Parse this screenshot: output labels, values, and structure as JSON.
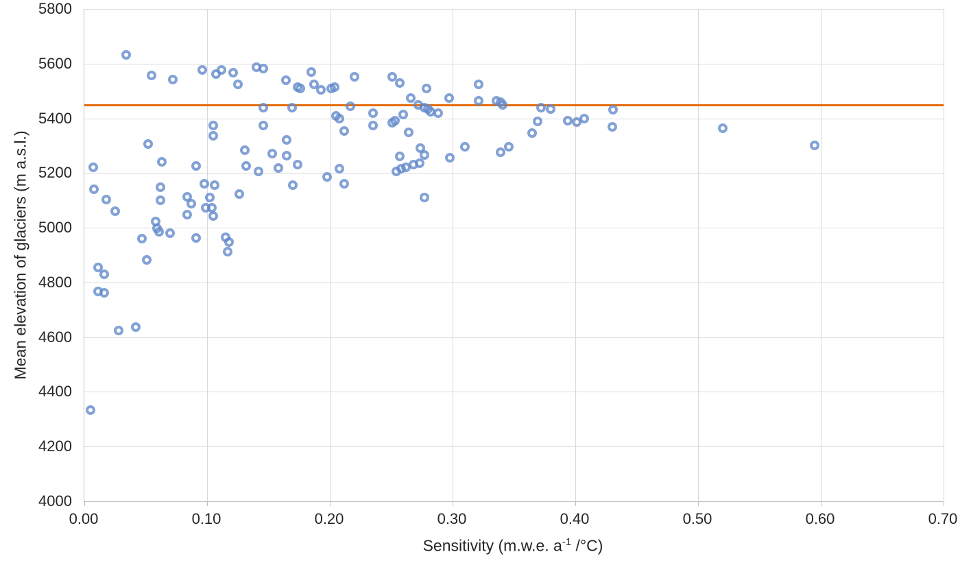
{
  "chart_data": {
    "type": "scatter",
    "title": "",
    "ylabel": "Mean elevation of glaciers (m a.s.l.)",
    "xlabel_prefix": "Sensitivity (m.w.e. a",
    "xlabel_sup": "-1",
    "xlabel_suffix": " /°C)",
    "xlim": [
      0.0,
      0.7
    ],
    "ylim": [
      4000,
      5800
    ],
    "grid": true,
    "legend_position": "none",
    "x_ticks": [
      {
        "value": 0.0,
        "label": "0.00"
      },
      {
        "value": 0.1,
        "label": "0.10"
      },
      {
        "value": 0.2,
        "label": "0.20"
      },
      {
        "value": 0.3,
        "label": "0.30"
      },
      {
        "value": 0.4,
        "label": "0.40"
      },
      {
        "value": 0.5,
        "label": "0.50"
      },
      {
        "value": 0.6,
        "label": "0.60"
      },
      {
        "value": 0.7,
        "label": "0.70"
      }
    ],
    "y_ticks": [
      {
        "value": 4000,
        "label": "4000"
      },
      {
        "value": 4200,
        "label": "4200"
      },
      {
        "value": 4400,
        "label": "4400"
      },
      {
        "value": 4600,
        "label": "4600"
      },
      {
        "value": 4800,
        "label": "4800"
      },
      {
        "value": 5000,
        "label": "5000"
      },
      {
        "value": 5200,
        "label": "5200"
      },
      {
        "value": 5400,
        "label": "5400"
      },
      {
        "value": 5600,
        "label": "5600"
      },
      {
        "value": 5800,
        "label": "5800"
      }
    ],
    "reference_line": {
      "value": 5450,
      "color": "#e56c0a"
    },
    "series": [
      {
        "name": "glacier-points",
        "marker": "open-circle",
        "color": "#6088ca",
        "points": [
          [
            0.005,
            4333
          ],
          [
            0.007,
            5220
          ],
          [
            0.008,
            5140
          ],
          [
            0.018,
            5103
          ],
          [
            0.025,
            5060
          ],
          [
            0.011,
            4854
          ],
          [
            0.016,
            4829
          ],
          [
            0.011,
            4766
          ],
          [
            0.016,
            4761
          ],
          [
            0.028,
            4624
          ],
          [
            0.042,
            4636
          ],
          [
            0.034,
            5633
          ],
          [
            0.055,
            5558
          ],
          [
            0.072,
            5543
          ],
          [
            0.052,
            5305
          ],
          [
            0.063,
            5242
          ],
          [
            0.062,
            5147
          ],
          [
            0.062,
            5100
          ],
          [
            0.058,
            5024
          ],
          [
            0.059,
            4999
          ],
          [
            0.061,
            4984
          ],
          [
            0.07,
            4979
          ],
          [
            0.047,
            4959
          ],
          [
            0.091,
            4962
          ],
          [
            0.051,
            4882
          ],
          [
            0.084,
            5112
          ],
          [
            0.087,
            5087
          ],
          [
            0.084,
            5047
          ],
          [
            0.091,
            5225
          ],
          [
            0.096,
            5578
          ],
          [
            0.107,
            5563
          ],
          [
            0.112,
            5576
          ],
          [
            0.121,
            5566
          ],
          [
            0.125,
            5525
          ],
          [
            0.14,
            5586
          ],
          [
            0.146,
            5583
          ],
          [
            0.164,
            5540
          ],
          [
            0.174,
            5513
          ],
          [
            0.146,
            5438
          ],
          [
            0.169,
            5440
          ],
          [
            0.105,
            5375
          ],
          [
            0.105,
            5335
          ],
          [
            0.146,
            5375
          ],
          [
            0.098,
            5160
          ],
          [
            0.106,
            5156
          ],
          [
            0.102,
            5110
          ],
          [
            0.099,
            5074
          ],
          [
            0.104,
            5072
          ],
          [
            0.105,
            5042
          ],
          [
            0.126,
            5124
          ],
          [
            0.131,
            5283
          ],
          [
            0.132,
            5225
          ],
          [
            0.142,
            5205
          ],
          [
            0.153,
            5272
          ],
          [
            0.158,
            5218
          ],
          [
            0.165,
            5322
          ],
          [
            0.165,
            5263
          ],
          [
            0.115,
            4965
          ],
          [
            0.118,
            4948
          ],
          [
            0.117,
            4912
          ],
          [
            0.185,
            5570
          ],
          [
            0.176,
            5510
          ],
          [
            0.187,
            5523
          ],
          [
            0.193,
            5503
          ],
          [
            0.201,
            5510
          ],
          [
            0.204,
            5513
          ],
          [
            0.22,
            5553
          ],
          [
            0.174,
            5230
          ],
          [
            0.17,
            5155
          ],
          [
            0.198,
            5187
          ],
          [
            0.208,
            5215
          ],
          [
            0.212,
            5160
          ],
          [
            0.205,
            5410
          ],
          [
            0.208,
            5400
          ],
          [
            0.212,
            5355
          ],
          [
            0.217,
            5445
          ],
          [
            0.235,
            5420
          ],
          [
            0.235,
            5375
          ],
          [
            0.251,
            5553
          ],
          [
            0.257,
            5530
          ],
          [
            0.279,
            5508
          ],
          [
            0.266,
            5475
          ],
          [
            0.297,
            5475
          ],
          [
            0.272,
            5450
          ],
          [
            0.277,
            5438
          ],
          [
            0.28,
            5435
          ],
          [
            0.282,
            5425
          ],
          [
            0.288,
            5418
          ],
          [
            0.26,
            5415
          ],
          [
            0.253,
            5392
          ],
          [
            0.251,
            5385
          ],
          [
            0.264,
            5350
          ],
          [
            0.274,
            5290
          ],
          [
            0.277,
            5267
          ],
          [
            0.254,
            5205
          ],
          [
            0.258,
            5215
          ],
          [
            0.262,
            5222
          ],
          [
            0.268,
            5230
          ],
          [
            0.273,
            5237
          ],
          [
            0.257,
            5262
          ],
          [
            0.277,
            5110
          ],
          [
            0.298,
            5257
          ],
          [
            0.321,
            5523
          ],
          [
            0.321,
            5463
          ],
          [
            0.31,
            5297
          ],
          [
            0.336,
            5463
          ],
          [
            0.339,
            5460
          ],
          [
            0.341,
            5448
          ],
          [
            0.339,
            5275
          ],
          [
            0.346,
            5295
          ],
          [
            0.372,
            5440
          ],
          [
            0.38,
            5433
          ],
          [
            0.369,
            5390
          ],
          [
            0.365,
            5345
          ],
          [
            0.394,
            5391
          ],
          [
            0.401,
            5387
          ],
          [
            0.407,
            5400
          ],
          [
            0.431,
            5432
          ],
          [
            0.43,
            5370
          ],
          [
            0.52,
            5363
          ],
          [
            0.595,
            5300
          ]
        ]
      }
    ]
  },
  "style": {
    "background": "#ffffff",
    "gridline_color": "#d9d9d9",
    "axis_color": "#bfbfbf",
    "text_color": "#262626",
    "marker_color": "#6088ca",
    "reference_line_color": "#e56c0a"
  }
}
